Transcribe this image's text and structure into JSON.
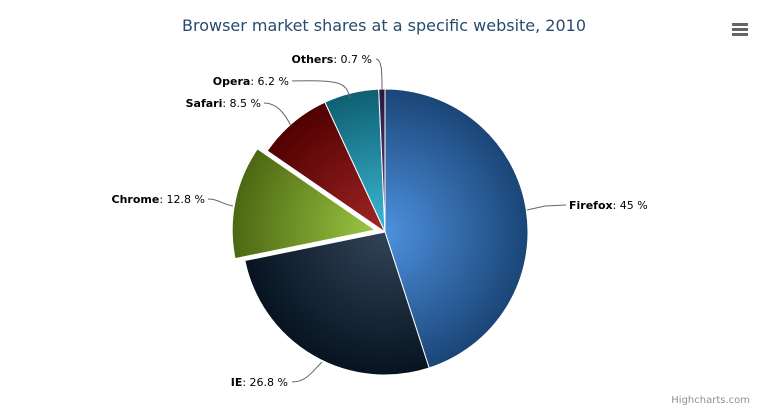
{
  "chart_data": {
    "type": "pie",
    "title": "Browser market shares at a specific website, 2010",
    "series": [
      {
        "name": "",
        "points": [
          {
            "name": "Firefox",
            "value": 45.0,
            "color": "#2f7ed8",
            "sliced": false
          },
          {
            "name": "IE",
            "value": 26.8,
            "color": "#0d233a",
            "sliced": false
          },
          {
            "name": "Chrome",
            "value": 12.8,
            "color": "#8bbc21",
            "sliced": true
          },
          {
            "name": "Safari",
            "value": 8.5,
            "color": "#910000",
            "sliced": false
          },
          {
            "name": "Opera",
            "value": 6.2,
            "color": "#1aadce",
            "sliced": false
          },
          {
            "name": "Others",
            "value": 0.7,
            "color": "#492970",
            "sliced": false
          }
        ]
      }
    ],
    "value_suffix": " %",
    "legend": "none"
  },
  "credits": "Highcharts.com",
  "menu_icon": "hamburger-menu-icon"
}
